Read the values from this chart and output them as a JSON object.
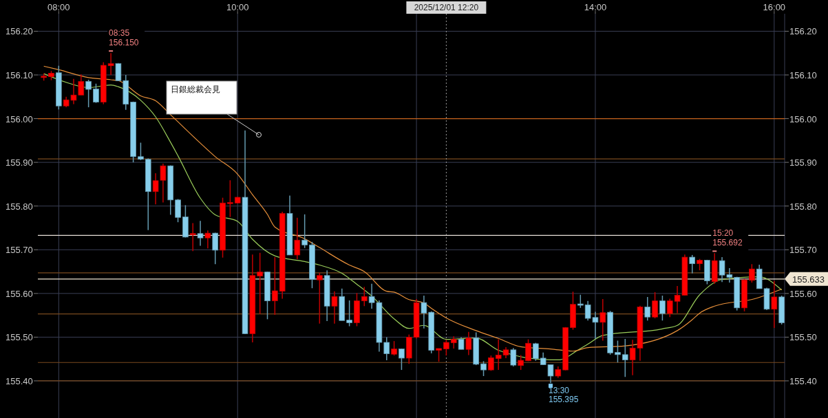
{
  "chart_data": {
    "type": "candlestick",
    "x": [
      "2025-12-01T07:50",
      "2025-12-01T07:55",
      "2025-12-01T08:00",
      "2025-12-01T08:05",
      "2025-12-01T08:10",
      "2025-12-01T08:15",
      "2025-12-01T08:20",
      "2025-12-01T08:25",
      "2025-12-01T08:30",
      "2025-12-01T08:35",
      "2025-12-01T08:40",
      "2025-12-01T08:45",
      "2025-12-01T08:50",
      "2025-12-01T08:55",
      "2025-12-01T09:00",
      "2025-12-01T09:05",
      "2025-12-01T09:10",
      "2025-12-01T09:15",
      "2025-12-01T09:20",
      "2025-12-01T09:25",
      "2025-12-01T09:30",
      "2025-12-01T09:35",
      "2025-12-01T09:40",
      "2025-12-01T09:45",
      "2025-12-01T09:50",
      "2025-12-01T09:55",
      "2025-12-01T10:00",
      "2025-12-01T10:05",
      "2025-12-01T10:10",
      "2025-12-01T10:15",
      "2025-12-01T10:20",
      "2025-12-01T10:25",
      "2025-12-01T10:30",
      "2025-12-01T10:35",
      "2025-12-01T10:40",
      "2025-12-01T10:45",
      "2025-12-01T10:50",
      "2025-12-01T10:55",
      "2025-12-01T11:00",
      "2025-12-01T11:05",
      "2025-12-01T11:10",
      "2025-12-01T11:15",
      "2025-12-01T11:20",
      "2025-12-01T11:25",
      "2025-12-01T11:30",
      "2025-12-01T11:35",
      "2025-12-01T11:40",
      "2025-12-01T11:45",
      "2025-12-01T11:50",
      "2025-12-01T11:55",
      "2025-12-01T12:00",
      "2025-12-01T12:05",
      "2025-12-01T12:10",
      "2025-12-01T12:15",
      "2025-12-01T12:20",
      "2025-12-01T12:25",
      "2025-12-01T12:30",
      "2025-12-01T12:35",
      "2025-12-01T12:40",
      "2025-12-01T12:45",
      "2025-12-01T12:50",
      "2025-12-01T12:55",
      "2025-12-01T13:00",
      "2025-12-01T13:05",
      "2025-12-01T13:10",
      "2025-12-01T13:15",
      "2025-12-01T13:20",
      "2025-12-01T13:25",
      "2025-12-01T13:30",
      "2025-12-01T13:35",
      "2025-12-01T13:40",
      "2025-12-01T13:45",
      "2025-12-01T13:50",
      "2025-12-01T13:55",
      "2025-12-01T14:00",
      "2025-12-01T14:05",
      "2025-12-01T14:10",
      "2025-12-01T14:15",
      "2025-12-01T14:20",
      "2025-12-01T14:25",
      "2025-12-01T14:30",
      "2025-12-01T14:35",
      "2025-12-01T14:40",
      "2025-12-01T14:45",
      "2025-12-01T14:50",
      "2025-12-01T14:55",
      "2025-12-01T15:00",
      "2025-12-01T15:05",
      "2025-12-01T15:10",
      "2025-12-01T15:15",
      "2025-12-01T15:20",
      "2025-12-01T15:25",
      "2025-12-01T15:30",
      "2025-12-01T15:35",
      "2025-12-01T15:40",
      "2025-12-01T15:45",
      "2025-12-01T15:50",
      "2025-12-01T15:55",
      "2025-12-01T16:00",
      "2025-12-01T16:05"
    ],
    "ohlc": [
      [
        156.094,
        156.103,
        156.087,
        156.097
      ],
      [
        156.096,
        156.109,
        156.088,
        156.104
      ],
      [
        156.105,
        156.121,
        156.021,
        156.029
      ],
      [
        156.029,
        156.05,
        156.026,
        156.043
      ],
      [
        156.042,
        156.091,
        156.033,
        156.054
      ],
      [
        156.054,
        156.101,
        156.054,
        156.085
      ],
      [
        156.085,
        156.089,
        156.026,
        156.067
      ],
      [
        156.068,
        156.08,
        156.036,
        156.038
      ],
      [
        156.038,
        156.129,
        156.033,
        156.122
      ],
      [
        156.121,
        156.15,
        156.1,
        156.126
      ],
      [
        156.126,
        156.127,
        156.086,
        156.087
      ],
      [
        156.087,
        156.1,
        156.02,
        156.033
      ],
      [
        156.038,
        156.039,
        155.9,
        155.913
      ],
      [
        155.913,
        155.945,
        155.905,
        155.907
      ],
      [
        155.907,
        155.909,
        155.745,
        155.833
      ],
      [
        155.833,
        155.875,
        155.804,
        155.858
      ],
      [
        155.859,
        155.897,
        155.808,
        155.892
      ],
      [
        155.892,
        155.893,
        155.78,
        155.814
      ],
      [
        155.814,
        155.816,
        155.763,
        155.774
      ],
      [
        155.775,
        155.802,
        155.728,
        155.729
      ],
      [
        155.734,
        155.761,
        155.697,
        155.737
      ],
      [
        155.737,
        155.766,
        155.709,
        155.727
      ],
      [
        155.727,
        155.744,
        155.703,
        155.738
      ],
      [
        155.738,
        155.739,
        155.667,
        155.699
      ],
      [
        155.699,
        155.819,
        155.682,
        155.807
      ],
      [
        155.806,
        155.859,
        155.775,
        155.808
      ],
      [
        155.807,
        155.821,
        155.806,
        155.82
      ],
      [
        155.82,
        155.973,
        155.507,
        155.508
      ],
      [
        155.508,
        155.689,
        155.488,
        155.641
      ],
      [
        155.64,
        155.693,
        155.553,
        155.649
      ],
      [
        155.649,
        155.65,
        155.541,
        155.583
      ],
      [
        155.583,
        155.683,
        155.551,
        155.606
      ],
      [
        155.605,
        155.787,
        155.588,
        155.783
      ],
      [
        155.783,
        155.824,
        155.688,
        155.688
      ],
      [
        155.688,
        155.773,
        155.678,
        155.722
      ],
      [
        155.722,
        155.781,
        155.704,
        155.711
      ],
      [
        155.711,
        155.718,
        155.612,
        155.632
      ],
      [
        155.631,
        155.647,
        155.531,
        155.641
      ],
      [
        155.641,
        155.653,
        155.537,
        155.571
      ],
      [
        155.571,
        155.605,
        155.531,
        155.593
      ],
      [
        155.593,
        155.611,
        155.538,
        155.538
      ],
      [
        155.539,
        155.584,
        155.525,
        155.533
      ],
      [
        155.533,
        155.601,
        155.525,
        155.583
      ],
      [
        155.583,
        155.615,
        155.571,
        155.593
      ],
      [
        155.593,
        155.622,
        155.565,
        155.579
      ],
      [
        155.579,
        155.584,
        155.467,
        155.488
      ],
      [
        155.488,
        155.5,
        155.447,
        155.462
      ],
      [
        155.461,
        155.491,
        155.458,
        155.473
      ],
      [
        155.473,
        155.474,
        155.425,
        155.452
      ],
      [
        155.452,
        155.506,
        155.439,
        155.5
      ],
      [
        155.5,
        155.587,
        155.497,
        155.579
      ],
      [
        155.579,
        155.595,
        155.52,
        155.555
      ],
      [
        155.557,
        155.559,
        155.463,
        155.47
      ],
      [
        155.47,
        155.474,
        155.444,
        155.474
      ],
      [
        155.473,
        155.494,
        155.458,
        155.488
      ],
      [
        155.487,
        155.502,
        155.474,
        155.495
      ],
      [
        155.495,
        155.5,
        155.472,
        155.472
      ],
      [
        155.472,
        155.512,
        155.459,
        155.498
      ],
      [
        155.498,
        155.511,
        155.436,
        155.438
      ],
      [
        155.439,
        155.445,
        155.411,
        155.425
      ],
      [
        155.425,
        155.458,
        155.423,
        155.453
      ],
      [
        155.451,
        155.495,
        155.425,
        155.459
      ],
      [
        155.459,
        155.477,
        155.452,
        155.471
      ],
      [
        155.471,
        155.475,
        155.433,
        155.436
      ],
      [
        155.435,
        155.459,
        155.425,
        155.447
      ],
      [
        155.446,
        155.495,
        155.445,
        155.486
      ],
      [
        155.485,
        155.487,
        155.446,
        155.451
      ],
      [
        155.452,
        155.465,
        155.436,
        155.437
      ],
      [
        155.437,
        155.437,
        155.395,
        155.411
      ],
      [
        155.411,
        155.433,
        155.407,
        155.426
      ],
      [
        155.425,
        155.523,
        155.424,
        155.522
      ],
      [
        155.522,
        155.604,
        155.517,
        155.575
      ],
      [
        155.576,
        155.597,
        155.567,
        155.573
      ],
      [
        155.574,
        155.583,
        155.538,
        155.543
      ],
      [
        155.545,
        155.558,
        155.496,
        155.534
      ],
      [
        155.534,
        155.587,
        155.492,
        155.556
      ],
      [
        155.557,
        155.56,
        155.46,
        155.464
      ],
      [
        155.465,
        155.492,
        155.442,
        155.46
      ],
      [
        155.46,
        155.496,
        155.409,
        155.448
      ],
      [
        155.448,
        155.494,
        155.413,
        155.475
      ],
      [
        155.475,
        155.572,
        155.446,
        155.569
      ],
      [
        155.569,
        155.592,
        155.538,
        155.546
      ],
      [
        155.546,
        155.603,
        155.543,
        155.583
      ],
      [
        155.583,
        155.595,
        155.538,
        155.554
      ],
      [
        155.554,
        155.588,
        155.546,
        155.583
      ],
      [
        155.582,
        155.617,
        155.555,
        155.596
      ],
      [
        155.596,
        155.689,
        155.595,
        155.683
      ],
      [
        155.683,
        155.688,
        155.646,
        155.668
      ],
      [
        155.668,
        155.679,
        155.653,
        155.676
      ],
      [
        155.676,
        155.677,
        155.621,
        155.629
      ],
      [
        155.627,
        155.692,
        155.622,
        155.675
      ],
      [
        155.675,
        155.683,
        155.626,
        155.642
      ],
      [
        155.643,
        155.658,
        155.625,
        155.637
      ],
      [
        155.637,
        155.638,
        155.561,
        155.567
      ],
      [
        155.567,
        155.633,
        155.559,
        155.631
      ],
      [
        155.63,
        155.667,
        155.625,
        155.656
      ],
      [
        155.656,
        155.666,
        155.611,
        155.611
      ],
      [
        155.611,
        155.613,
        155.562,
        155.564
      ],
      [
        155.564,
        155.629,
        155.521,
        155.592
      ],
      [
        155.592,
        155.595,
        155.529,
        155.533
      ]
    ],
    "colors": [
      "#ff0000",
      "#ff0000",
      "#87ceeb",
      "#ff0000",
      "#ff0000",
      "#ff0000",
      "#87ceeb",
      "#87ceeb",
      "#ff0000",
      "#ff0000",
      "#87ceeb",
      "#87ceeb",
      "#87ceeb",
      "#87ceeb",
      "#87ceeb",
      "#ff0000",
      "#ff0000",
      "#87ceeb",
      "#87ceeb",
      "#87ceeb",
      "#ff0000",
      "#87ceeb",
      "#ff0000",
      "#87ceeb",
      "#ff0000",
      "#ff0000",
      "#ff0000",
      "#87ceeb",
      "#ff0000",
      "#ff0000",
      "#87ceeb",
      "#ff0000",
      "#ff0000",
      "#87ceeb",
      "#ff0000",
      "#87ceeb",
      "#87ceeb",
      "#ff0000",
      "#87ceeb",
      "#ff0000",
      "#87ceeb",
      "#87ceeb",
      "#ff0000",
      "#ff0000",
      "#87ceeb",
      "#87ceeb",
      "#87ceeb",
      "#ff0000",
      "#87ceeb",
      "#ff0000",
      "#ff0000",
      "#87ceeb",
      "#87ceeb",
      "#ff0000",
      "#ff0000",
      "#ff0000",
      "#87ceeb",
      "#ff0000",
      "#87ceeb",
      "#87ceeb",
      "#ff0000",
      "#ff0000",
      "#ff0000",
      "#87ceeb",
      "#ff0000",
      "#ff0000",
      "#87ceeb",
      "#87ceeb",
      "#87ceeb",
      "#ff0000",
      "#ff0000",
      "#ff0000",
      "#87ceeb",
      "#87ceeb",
      "#87ceeb",
      "#ff0000",
      "#87ceeb",
      "#87ceeb",
      "#87ceeb",
      "#ff0000",
      "#ff0000",
      "#87ceeb",
      "#ff0000",
      "#87ceeb",
      "#ff0000",
      "#ff0000",
      "#ff0000",
      "#87ceeb",
      "#ff0000",
      "#87ceeb",
      "#ff0000",
      "#87ceeb",
      "#87ceeb",
      "#87ceeb",
      "#ff0000",
      "#ff0000",
      "#87ceeb",
      "#87ceeb",
      "#ff0000",
      "#87ceeb"
    ],
    "series": [
      {
        "type": "line",
        "color": "#9acd5a",
        "x": [
          "2025-12-01T07:50",
          "2025-12-01T08:05",
          "2025-12-01T08:20",
          "2025-12-01T08:35",
          "2025-12-01T08:40",
          "2025-12-01T08:55",
          "2025-12-01T09:05",
          "2025-12-01T09:15",
          "2025-12-01T09:20",
          "2025-12-01T09:35",
          "2025-12-01T09:45",
          "2025-12-01T10:00",
          "2025-12-01T10:10",
          "2025-12-01T10:25",
          "2025-12-01T10:45",
          "2025-12-01T10:55",
          "2025-12-01T11:10",
          "2025-12-01T11:20",
          "2025-12-01T11:30",
          "2025-12-01T11:45",
          "2025-12-01T11:55",
          "2025-12-01T12:05",
          "2025-12-01T12:20",
          "2025-12-01T12:40",
          "2025-12-01T12:55",
          "2025-12-01T13:30",
          "2025-12-01T13:35",
          "2025-12-01T13:50",
          "2025-12-01T13:55",
          "2025-12-01T14:05",
          "2025-12-01T14:45",
          "2025-12-01T14:55",
          "2025-12-01T15:10",
          "2025-12-01T15:25",
          "2025-12-01T15:50",
          "2025-12-01T16:05"
        ],
        "values": [
          156.103,
          156.083,
          156.071,
          156.077,
          156.073,
          156.042,
          156.004,
          155.946,
          155.915,
          155.818,
          155.78,
          155.765,
          155.724,
          155.686,
          155.673,
          155.665,
          155.646,
          155.621,
          155.594,
          155.542,
          155.52,
          155.527,
          155.495,
          155.498,
          155.47,
          155.448,
          155.448,
          155.474,
          155.484,
          155.504,
          155.519,
          155.527,
          155.597,
          155.632,
          155.638,
          155.608
        ]
      },
      {
        "type": "line",
        "color": "#e8903a",
        "x": [
          "2025-12-01T07:50",
          "2025-12-01T08:00",
          "2025-12-01T08:20",
          "2025-12-01T08:35",
          "2025-12-01T08:40",
          "2025-12-01T08:55",
          "2025-12-01T09:05",
          "2025-12-01T09:15",
          "2025-12-01T09:35",
          "2025-12-01T09:45",
          "2025-12-01T10:00",
          "2025-12-01T10:10",
          "2025-12-01T10:20",
          "2025-12-01T10:25",
          "2025-12-01T10:45",
          "2025-12-01T10:55",
          "2025-12-01T11:15",
          "2025-12-01T11:25",
          "2025-12-01T11:40",
          "2025-12-01T11:45",
          "2025-12-01T11:55",
          "2025-12-01T12:05",
          "2025-12-01T12:10",
          "2025-12-01T12:20",
          "2025-12-01T12:40",
          "2025-12-01T12:55",
          "2025-12-01T13:10",
          "2025-12-01T13:30",
          "2025-12-01T13:45",
          "2025-12-01T13:55",
          "2025-12-01T14:20",
          "2025-12-01T14:55",
          "2025-12-01T15:05",
          "2025-12-01T15:10",
          "2025-12-01T15:20",
          "2025-12-01T15:47",
          "2025-12-01T16:05"
        ],
        "values": [
          156.12,
          156.112,
          156.094,
          156.089,
          156.087,
          156.052,
          156.041,
          156.009,
          155.944,
          155.913,
          155.873,
          155.826,
          155.781,
          155.752,
          155.725,
          155.705,
          155.665,
          155.65,
          155.605,
          155.603,
          155.586,
          155.578,
          155.566,
          155.544,
          155.515,
          155.497,
          155.478,
          155.473,
          155.468,
          155.476,
          155.48,
          155.515,
          155.54,
          155.555,
          155.571,
          155.588,
          155.61
        ]
      }
    ],
    "xlim": [
      "2025-12-01T07:46",
      "2025-12-01T16:07"
    ],
    "xticks": [
      {
        "value": "2025-12-01T08:00",
        "label": "08:00"
      },
      {
        "value": "2025-12-01T10:00",
        "label": "10:00"
      },
      {
        "value": "2025-12-01T12:00",
        "label": null
      },
      {
        "value": "2025-12-01T14:00",
        "label": "14:00"
      },
      {
        "value": "2025-12-01T16:00",
        "label": "16:00"
      }
    ],
    "ylim": [
      155.315,
      156.24
    ],
    "yticks": [
      {
        "value": 155.4,
        "label": "155.40"
      },
      {
        "value": 155.5,
        "label": "155.50"
      },
      {
        "value": 155.6,
        "label": "155.60"
      },
      {
        "value": 155.7,
        "label": "155.70"
      },
      {
        "value": 155.8,
        "label": "155.80"
      },
      {
        "value": 155.9,
        "label": "155.90"
      },
      {
        "value": 156.0,
        "label": "156.00"
      },
      {
        "value": 156.1,
        "label": "156.10"
      },
      {
        "value": 156.2,
        "label": "156.20"
      }
    ],
    "y2lim": [
      155.315,
      156.24
    ],
    "y2ticks": [
      {
        "value": 155.4,
        "label": "155.40"
      },
      {
        "value": 155.5,
        "label": "155.50"
      },
      {
        "value": 155.6,
        "label": "155.60"
      },
      {
        "value": 155.7,
        "label": "155.70"
      },
      {
        "value": 155.8,
        "label": "155.80"
      },
      {
        "value": 155.9,
        "label": "155.90"
      },
      {
        "value": 156.0,
        "label": "156.00"
      },
      {
        "value": 156.1,
        "label": "156.10"
      },
      {
        "value": 156.2,
        "label": "156.20"
      }
    ],
    "grid": true,
    "ref_lines": [
      {
        "axis": "y",
        "value": 156.0,
        "color": "#c8641e"
      },
      {
        "axis": "y",
        "value": 155.908,
        "color": "#7a4a1e"
      },
      {
        "axis": "y",
        "value": 155.733,
        "color": "#e8e0d8"
      },
      {
        "axis": "y",
        "value": 155.647,
        "color": "#7a4a1e"
      },
      {
        "axis": "y",
        "value": 155.633,
        "label": "155.633",
        "color": "#f0e6d2"
      },
      {
        "axis": "y",
        "value": 155.553,
        "color": "#7a4a1e"
      },
      {
        "axis": "y",
        "value": 155.442,
        "color": "#7a4a1e"
      },
      {
        "axis": "y",
        "value": 155.4,
        "color": "#7a4a1e"
      },
      {
        "axis": "x",
        "value": "2025-12-01T12:20",
        "label": "2025/12/01 12:20",
        "color": "#9a9a9a",
        "line_style": "dotted"
      }
    ],
    "annotations": [
      {
        "text": "08:35\n156.150",
        "x": "2025-12-01T08:35",
        "y": 156.15
      },
      {
        "text": "13:30\n155.395",
        "x": "2025-12-01T13:30",
        "y": 155.395
      },
      {
        "text": "15:20\n155.692",
        "x": "2025-12-01T15:20",
        "y": 155.692
      },
      "日銀総裁会見"
    ]
  }
}
